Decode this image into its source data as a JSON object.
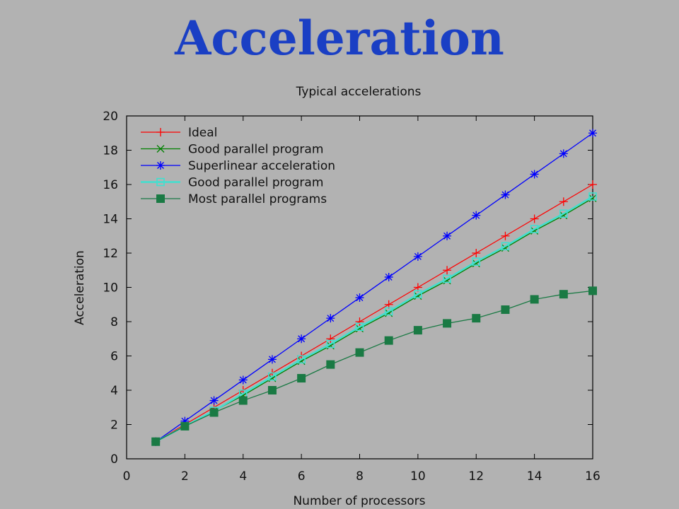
{
  "slide": {
    "title": "Acceleration"
  },
  "chart_data": {
    "type": "line",
    "title": "Typical accelerations",
    "xlabel": "Number of processors",
    "ylabel": "Acceleration",
    "xlim": [
      0,
      16
    ],
    "ylim": [
      0,
      20
    ],
    "xticks": [
      "0",
      "2",
      "4",
      "6",
      "8",
      "10",
      "12",
      "14",
      "16"
    ],
    "yticks": [
      "0",
      "2",
      "4",
      "6",
      "8",
      "10",
      "12",
      "14",
      "16",
      "18",
      "20"
    ],
    "grid": false,
    "legend": "top-left",
    "x": [
      1,
      2,
      3,
      4,
      5,
      6,
      7,
      8,
      9,
      10,
      11,
      12,
      13,
      14,
      15,
      16
    ],
    "series": [
      {
        "name": "Ideal",
        "color": "#ff0000",
        "marker": "plus",
        "values": [
          1,
          2,
          3,
          4,
          5,
          6,
          7,
          8,
          9,
          10,
          11,
          12,
          13,
          14,
          15,
          16
        ]
      },
      {
        "name": "Good parallel program",
        "color": "#008000",
        "marker": "cross",
        "values": [
          1,
          1.9,
          2.8,
          3.7,
          4.7,
          5.7,
          6.6,
          7.6,
          8.5,
          9.5,
          10.4,
          11.4,
          12.3,
          13.3,
          14.2,
          15.2
        ]
      },
      {
        "name": "Superlinear acceleration",
        "color": "#0000ff",
        "marker": "star",
        "values": [
          1,
          2.2,
          3.4,
          4.6,
          5.8,
          7.0,
          8.2,
          9.4,
          10.6,
          11.8,
          13.0,
          14.2,
          15.4,
          16.6,
          17.8,
          19.0
        ]
      },
      {
        "name": "Good parallel program",
        "color": "#40e0d0",
        "marker": "open-square",
        "values": [
          1,
          1.9,
          2.8,
          3.8,
          4.8,
          5.8,
          6.7,
          7.7,
          8.6,
          9.6,
          10.5,
          11.5,
          12.4,
          13.4,
          14.3,
          15.3
        ]
      },
      {
        "name": "Most parallel programs",
        "color": "#1a7a44",
        "marker": "filled-square",
        "values": [
          1,
          1.9,
          2.7,
          3.4,
          4.0,
          4.7,
          5.5,
          6.2,
          6.9,
          7.5,
          7.9,
          8.2,
          8.7,
          9.3,
          9.6,
          9.8
        ]
      }
    ]
  }
}
